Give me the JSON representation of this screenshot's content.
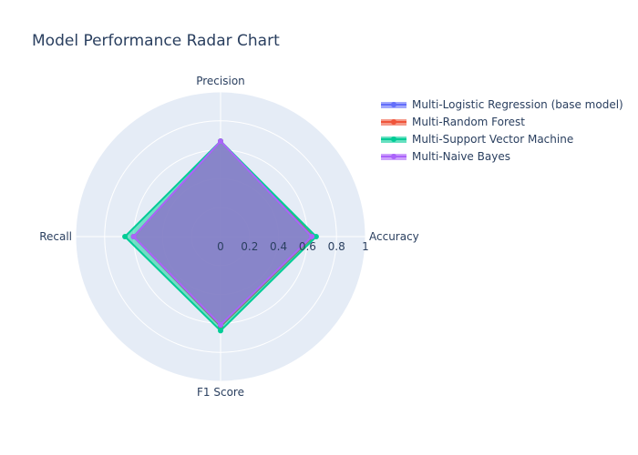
{
  "chart_data": {
    "type": "radar",
    "title": "Model Performance Radar Chart",
    "axes": [
      "Accuracy",
      "Precision",
      "Recall",
      "F1 Score"
    ],
    "radial_range": [
      0,
      1
    ],
    "radial_ticks": [
      "0",
      "0.2",
      "0.4",
      "0.6",
      "0.8",
      "1"
    ],
    "radial_tick_values": [
      0,
      0.2,
      0.4,
      0.6,
      0.8,
      1
    ],
    "grid": true,
    "legend_position": "top-right",
    "series": [
      {
        "name": "Multi-Logistic Regression (base model)",
        "color": "#636efa",
        "values": [
          0.64,
          0.66,
          0.6,
          0.62
        ]
      },
      {
        "name": "Multi-Random Forest",
        "color": "#ef553b",
        "values": [
          0.64,
          0.66,
          0.6,
          0.62
        ]
      },
      {
        "name": "Multi-Support Vector Machine",
        "color": "#00cc96",
        "values": [
          0.66,
          0.66,
          0.66,
          0.65
        ]
      },
      {
        "name": "Multi-Naive Bayes",
        "color": "#ab63fa",
        "values": [
          0.63,
          0.66,
          0.6,
          0.61
        ]
      }
    ]
  }
}
